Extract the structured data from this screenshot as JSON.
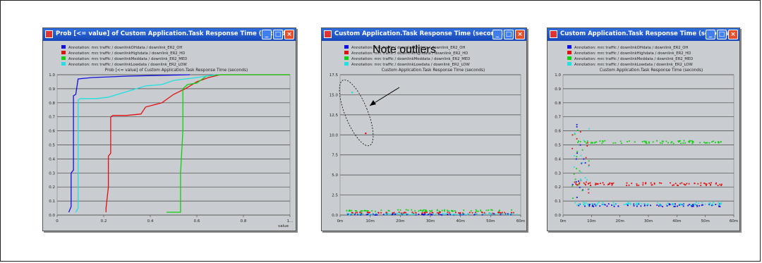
{
  "windows": [
    {
      "title": "Prob [<= value] of Custom Application.Task Response Time (seconds)"
    },
    {
      "title": "Custom Application.Task Response Time (seconds)"
    },
    {
      "title": "Custom Application.Task Response Time (seconds)"
    }
  ],
  "annotation": "Note outliers",
  "colors": {
    "oh": "#1010e0",
    "hd": "#e01010",
    "med": "#10d010",
    "low": "#20e0e0"
  },
  "chart_data": [
    {
      "type": "line",
      "title": "Prob [<= value] of Custom Application.Task Response Time (seconds)",
      "xlabel": "value",
      "xlim": [
        0,
        1.0
      ],
      "ylim": [
        0,
        1.0
      ],
      "xticks": [
        "0",
        "0.2",
        "0.4",
        "0.6",
        "0.8",
        "1..."
      ],
      "yticks": [
        "0.0",
        "0.1",
        "0.2",
        "0.3",
        "0.4",
        "0.5",
        "0.6",
        "0.7",
        "0.8",
        "0.9",
        "1.0"
      ],
      "series": [
        {
          "name": "Annotation: mrc traffic / downlinkOHdata / downlink_ER2_OH",
          "color": "#1010e0",
          "points": [
            [
              0.05,
              0.02
            ],
            [
              0.06,
              0.06
            ],
            [
              0.06,
              0.3
            ],
            [
              0.07,
              0.32
            ],
            [
              0.07,
              0.85
            ],
            [
              0.08,
              0.86
            ],
            [
              0.09,
              0.97
            ],
            [
              0.15,
              0.98
            ],
            [
              0.3,
              0.99
            ],
            [
              0.57,
              1.0
            ]
          ]
        },
        {
          "name": "Annotation: mrc traffic / downlinkHighdata / downlink_ER2_HD",
          "color": "#e01010",
          "points": [
            [
              0.21,
              0.02
            ],
            [
              0.21,
              0.05
            ],
            [
              0.22,
              0.2
            ],
            [
              0.22,
              0.42
            ],
            [
              0.23,
              0.44
            ],
            [
              0.23,
              0.7
            ],
            [
              0.24,
              0.71
            ],
            [
              0.3,
              0.71
            ],
            [
              0.36,
              0.72
            ],
            [
              0.38,
              0.77
            ],
            [
              0.45,
              0.8
            ],
            [
              0.5,
              0.86
            ],
            [
              0.55,
              0.9
            ],
            [
              0.6,
              0.95
            ],
            [
              0.65,
              0.98
            ],
            [
              0.7,
              1.0
            ],
            [
              1.0,
              1.0
            ]
          ]
        },
        {
          "name": "Annotation: mrc traffic / downlinkMeddata / downlink_ER2_MED",
          "color": "#10d010",
          "points": [
            [
              0.47,
              0.02
            ],
            [
              0.53,
              0.02
            ],
            [
              0.53,
              0.3
            ],
            [
              0.54,
              0.6
            ],
            [
              0.54,
              0.9
            ],
            [
              0.56,
              0.93
            ],
            [
              0.6,
              0.94
            ],
            [
              0.64,
              0.99
            ],
            [
              0.7,
              1.0
            ],
            [
              1.0,
              1.0
            ]
          ]
        },
        {
          "name": "Annotation: mrc traffic / downlinkLowdata / downlink_ER2_LOW",
          "color": "#20e0e0",
          "points": [
            [
              0.08,
              0.02
            ],
            [
              0.09,
              0.05
            ],
            [
              0.09,
              0.82
            ],
            [
              0.1,
              0.83
            ],
            [
              0.17,
              0.83
            ],
            [
              0.22,
              0.84
            ],
            [
              0.3,
              0.88
            ],
            [
              0.34,
              0.9
            ],
            [
              0.38,
              0.92
            ],
            [
              0.45,
              0.93
            ],
            [
              0.5,
              0.96
            ],
            [
              0.55,
              0.97
            ],
            [
              0.6,
              0.98
            ],
            [
              0.68,
              1.0
            ]
          ]
        }
      ]
    },
    {
      "type": "scatter",
      "title": "Custom Application.Task Response Time (seconds)",
      "xlim": [
        0,
        60
      ],
      "ylim": [
        0,
        17.5
      ],
      "xticks": [
        "0m",
        "10m",
        "20m",
        "30m",
        "40m",
        "50m",
        "60m"
      ],
      "yticks": [
        "0.0",
        "2.5",
        "5.0",
        "7.5",
        "10.0",
        "12.5",
        "15.0",
        "17.5"
      ],
      "series": [
        {
          "name": "Annotation: mrc traffic / downlinkOHdata / downlink_ER2_OH",
          "color": "#1010e0",
          "band": [
            0.0,
            0.15
          ],
          "outliers": []
        },
        {
          "name": "Annotation: mrc traffic / downlinkHighdata / downlink_ER2_HD",
          "color": "#e01010",
          "band": [
            0.2,
            0.35
          ],
          "outliers": [
            [
              8.5,
              10.2
            ]
          ]
        },
        {
          "name": "Annotation: mrc traffic / downlinkMeddata / downlink_ER2_MED",
          "color": "#10d010",
          "band": [
            0.45,
            0.65
          ],
          "outliers": []
        },
        {
          "name": "Annotation: mrc traffic / downlinkLowdata / downlink_ER2_LOW",
          "color": "#20e0e0",
          "band": [
            0.05,
            0.2
          ],
          "outliers": [
            [
              4.0,
              15.3
            ]
          ]
        }
      ]
    },
    {
      "type": "scatter",
      "title": "Custom Application.Task Response Time (seconds)",
      "xlim": [
        0,
        60
      ],
      "ylim": [
        0,
        1.0
      ],
      "xticks": [
        "0m",
        "10m",
        "20m",
        "30m",
        "40m",
        "50m",
        "60m"
      ],
      "yticks": [
        "0.0",
        "0.1",
        "0.2",
        "0.3",
        "0.4",
        "0.5",
        "0.6",
        "0.7",
        "0.8",
        "0.9",
        "1.0"
      ],
      "series": [
        {
          "name": "Annotation: mrc traffic / downlinkOHdata / downlink_ER2_OH",
          "color": "#1010e0",
          "band": [
            0.06,
            0.08
          ]
        },
        {
          "name": "Annotation: mrc traffic / downlinkHighdata / downlink_ER2_HD",
          "color": "#e01010",
          "band": [
            0.21,
            0.23
          ]
        },
        {
          "name": "Annotation: mrc traffic / downlinkMeddata / downlink_ER2_MED",
          "color": "#10d010",
          "band": [
            0.51,
            0.53
          ]
        },
        {
          "name": "Annotation: mrc traffic / downlinkLowdata / downlink_ER2_LOW",
          "color": "#20e0e0",
          "band": [
            0.07,
            0.09
          ]
        }
      ]
    }
  ]
}
